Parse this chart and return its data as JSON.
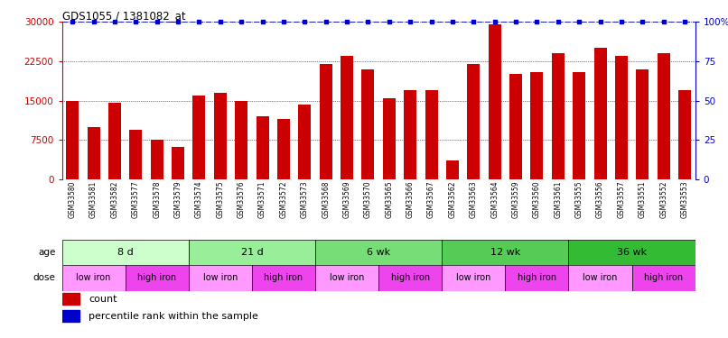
{
  "title": "GDS1055 / 1381082_at",
  "samples": [
    "GSM33580",
    "GSM33581",
    "GSM33582",
    "GSM33577",
    "GSM33578",
    "GSM33579",
    "GSM33574",
    "GSM33575",
    "GSM33576",
    "GSM33571",
    "GSM33572",
    "GSM33573",
    "GSM33568",
    "GSM33569",
    "GSM33570",
    "GSM33565",
    "GSM33566",
    "GSM33567",
    "GSM33562",
    "GSM33563",
    "GSM33564",
    "GSM33559",
    "GSM33560",
    "GSM33561",
    "GSM33555",
    "GSM33556",
    "GSM33557",
    "GSM33551",
    "GSM33552",
    "GSM33553"
  ],
  "values": [
    15000,
    10000,
    14500,
    9500,
    7500,
    6200,
    16000,
    16500,
    15000,
    12000,
    11500,
    14200,
    22000,
    23500,
    21000,
    15500,
    17000,
    17000,
    3500,
    22000,
    29500,
    20000,
    20500,
    24000,
    20500,
    25000,
    23500,
    21000,
    24000,
    17000
  ],
  "ymax": 30000,
  "yticks": [
    0,
    7500,
    15000,
    22500,
    30000
  ],
  "ytick_labels": [
    "0",
    "7500",
    "15000",
    "22500",
    "30000"
  ],
  "right_yticks": [
    0,
    25,
    50,
    75,
    100
  ],
  "right_ytick_labels": [
    "0",
    "25",
    "50",
    "75",
    "100%"
  ],
  "bar_color": "#CC0000",
  "percentile_color": "#0000CC",
  "age_groups": [
    {
      "label": "8 d",
      "start": 0,
      "end": 6,
      "color": "#CCFFCC"
    },
    {
      "label": "21 d",
      "start": 6,
      "end": 12,
      "color": "#99EE99"
    },
    {
      "label": "6 wk",
      "start": 12,
      "end": 18,
      "color": "#77DD77"
    },
    {
      "label": "12 wk",
      "start": 18,
      "end": 24,
      "color": "#55CC55"
    },
    {
      "label": "36 wk",
      "start": 24,
      "end": 30,
      "color": "#33BB33"
    }
  ],
  "dose_groups": [
    {
      "label": "low iron",
      "start": 0,
      "end": 3,
      "color": "#FF99FF"
    },
    {
      "label": "high iron",
      "start": 3,
      "end": 6,
      "color": "#EE44EE"
    },
    {
      "label": "low iron",
      "start": 6,
      "end": 9,
      "color": "#FF99FF"
    },
    {
      "label": "high iron",
      "start": 9,
      "end": 12,
      "color": "#EE44EE"
    },
    {
      "label": "low iron",
      "start": 12,
      "end": 15,
      "color": "#FF99FF"
    },
    {
      "label": "high iron",
      "start": 15,
      "end": 18,
      "color": "#EE44EE"
    },
    {
      "label": "low iron",
      "start": 18,
      "end": 21,
      "color": "#FF99FF"
    },
    {
      "label": "high iron",
      "start": 21,
      "end": 24,
      "color": "#EE44EE"
    },
    {
      "label": "low iron",
      "start": 24,
      "end": 27,
      "color": "#FF99FF"
    },
    {
      "label": "high iron",
      "start": 27,
      "end": 30,
      "color": "#EE44EE"
    }
  ],
  "age_label": "age",
  "dose_label": "dose",
  "legend_count_color": "#CC0000",
  "legend_percentile_color": "#0000CC",
  "background_color": "#FFFFFF",
  "left_axis_color": "#CC0000",
  "right_axis_color": "#0000CC"
}
